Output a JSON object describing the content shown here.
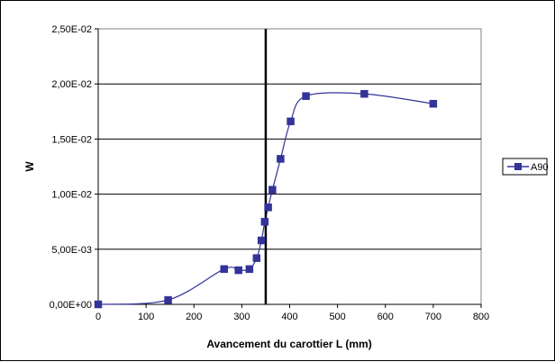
{
  "chart_data": {
    "type": "scatter",
    "title": "",
    "xlabel": "Avancement du carottier L (mm)",
    "ylabel": "W",
    "xlim": [
      0,
      800
    ],
    "ylim": [
      0,
      0.025
    ],
    "xticks": [
      0,
      100,
      200,
      300,
      400,
      500,
      600,
      700,
      800
    ],
    "xtick_labels": [
      "0",
      "100",
      "200",
      "300",
      "400",
      "500",
      "600",
      "700",
      "800"
    ],
    "yticks": [
      0,
      0.005,
      0.01,
      0.015,
      0.02,
      0.025
    ],
    "ytick_labels": [
      "0,00E+00",
      "5,00E-03",
      "1,00E-02",
      "1,50E-02",
      "2,00E-02",
      "2,50E-02"
    ],
    "grid": "horizontal",
    "legend_position": "right",
    "series": [
      {
        "name": "A90",
        "color": "#333399",
        "marker": "square",
        "line": "smooth",
        "x": [
          0,
          146,
          263,
          293,
          316,
          331,
          341,
          348,
          355,
          364,
          381,
          402,
          434,
          556,
          700
        ],
        "y": [
          0,
          0.0004,
          0.0032,
          0.0031,
          0.0032,
          0.0042,
          0.0058,
          0.0075,
          0.0088,
          0.0104,
          0.0132,
          0.0166,
          0.0189,
          0.0191,
          0.0182
        ]
      }
    ],
    "reference_line": {
      "orientation": "vertical",
      "x": 350,
      "color": "#000000"
    }
  }
}
